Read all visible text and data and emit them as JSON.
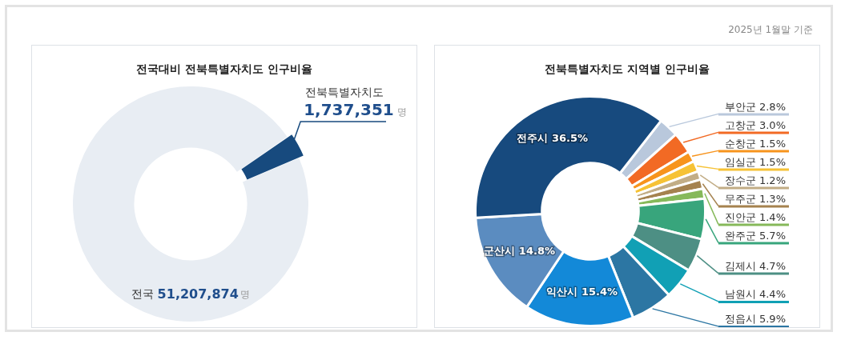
{
  "chart_data": [
    {
      "type": "donut",
      "title": "전국대비 전북특별자치도 인구비율",
      "categories": [
        "전국",
        "전북특별자치도"
      ],
      "values": [
        51207874,
        1737351
      ],
      "colors": [
        "#e8edf3",
        "#174a7e"
      ],
      "value_labels": [
        "51,207,874명",
        "1,737,351명"
      ]
    },
    {
      "type": "donut",
      "title": "전북특별자치도 지역별 인구비율",
      "categories": [
        "부안군",
        "고창군",
        "순창군",
        "임실군",
        "장수군",
        "무주군",
        "진안군",
        "완주군",
        "김제시",
        "남원시",
        "정읍시",
        "익산시",
        "군산시",
        "전주시"
      ],
      "values": [
        2.8,
        3.0,
        1.5,
        1.5,
        1.2,
        1.3,
        1.4,
        5.7,
        4.7,
        4.4,
        5.9,
        15.4,
        14.8,
        36.5
      ],
      "colors": [
        "#b9c8dc",
        "#f26a24",
        "#f7941d",
        "#f6c235",
        "#c2ad86",
        "#a5824f",
        "#86b95a",
        "#38a57c",
        "#4d8f84",
        "#11a0b5",
        "#2c76a3",
        "#1389d8",
        "#5b8cc0",
        "#174a7e"
      ],
      "value_labels": [
        "2.8%",
        "3.0%",
        "1.5%",
        "1.5%",
        "1.2%",
        "1.3%",
        "1.4%",
        "5.7%",
        "4.7%",
        "4.4%",
        "5.9%",
        "15.4%",
        "14.8%",
        "36.5%"
      ],
      "annotations": [
        "2025년 1월말 기준"
      ]
    }
  ]
}
